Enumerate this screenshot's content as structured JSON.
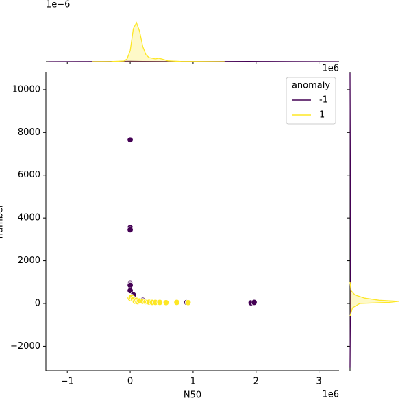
{
  "chart_data": {
    "type": "scatter",
    "x_label": "N50",
    "y_label": "number",
    "x_offset_label": "1e6",
    "xlim": [
      -1.34,
      3.32
    ],
    "ylim": [
      -3140,
      10830
    ],
    "xticks": [
      {
        "value": -1,
        "label": "−1"
      },
      0,
      1,
      2,
      3
    ],
    "yticks": [
      {
        "value": -2000,
        "label": "−2000"
      },
      0,
      2000,
      4000,
      6000,
      8000,
      10000
    ],
    "legend": {
      "title": "anomaly",
      "position": "upper right"
    },
    "series": [
      {
        "name": "-1",
        "color": "#440154",
        "x": [
          0,
          0,
          0,
          0,
          0,
          0,
          0,
          0.05,
          0.2,
          0.9,
          1.92,
          1.97
        ],
        "values": [
          7650,
          3550,
          3450,
          950,
          900,
          850,
          600,
          400,
          150,
          50,
          30,
          50
        ]
      },
      {
        "name": "1",
        "color": "#fde725",
        "x": [
          0,
          0.02,
          0.05,
          0.08,
          0.1,
          0.12,
          0.15,
          0.2,
          0.25,
          0.28,
          0.3,
          0.35,
          0.4,
          0.47,
          0.57,
          0.74,
          0.92
        ],
        "values": [
          250,
          300,
          200,
          100,
          150,
          80,
          120,
          100,
          80,
          70,
          60,
          50,
          50,
          50,
          40,
          50,
          40
        ]
      }
    ],
    "marginal_top": {
      "y_offset_label": "1e−6",
      "x_offset_label": "1e6",
      "ylim": [
        0,
        3.6
      ],
      "series": [
        {
          "color": "#440154",
          "x": [
            -1.3,
            -0.8,
            -0.4,
            -0.2,
            0,
            0.2,
            0.5,
            1,
            1.5,
            1.9,
            2.2,
            2.6,
            3.3
          ],
          "values": [
            0,
            0.005,
            0.01,
            0.015,
            0.03,
            0.02,
            0.01,
            0.01,
            0.01,
            0.015,
            0.01,
            0.005,
            0
          ]
        },
        {
          "color": "#fde725",
          "x": [
            -0.6,
            -0.3,
            -0.1,
            -0.05,
            0,
            0.05,
            0.1,
            0.15,
            0.2,
            0.25,
            0.3,
            0.4,
            0.45,
            0.5,
            0.6,
            0.8,
            1.0,
            1.5
          ],
          "values": [
            0,
            0.01,
            0.05,
            0.2,
            0.8,
            2.4,
            2.85,
            2.2,
            1.1,
            0.5,
            0.3,
            0.2,
            0.25,
            0.2,
            0.06,
            0.02,
            0.01,
            0
          ]
        }
      ]
    },
    "marginal_right": {
      "xlim": [
        0,
        1.25
      ],
      "series": [
        {
          "color": "#440154",
          "y": [
            -3000,
            -1000,
            0,
            1000,
            3500,
            7650,
            10800
          ],
          "values": [
            0,
            0.005,
            0.01,
            0.01,
            0.008,
            0.004,
            0
          ]
        },
        {
          "color": "#fde725",
          "y": [
            -600,
            -200,
            0,
            50,
            100,
            150,
            250,
            400,
            600,
            1000
          ],
          "values": [
            0,
            0.05,
            0.2,
            0.8,
            1,
            0.6,
            0.3,
            0.1,
            0.02,
            0
          ]
        }
      ]
    }
  }
}
